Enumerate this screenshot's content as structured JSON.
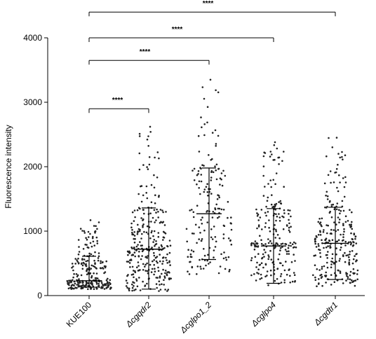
{
  "chart_data": {
    "type": "scatter",
    "subtype": "dot plot with mean and SD",
    "ylabel": "Fluorescence intensity",
    "ylim": [
      0,
      4000
    ],
    "yticks": [
      "0",
      "1000",
      "2000",
      "3000",
      "4000"
    ],
    "grid": false,
    "categories": [
      "KUE100",
      "Δcgqdr2",
      "Δcglpo1_2",
      "Δcglpo4",
      "Δcgdtr1"
    ],
    "groups": [
      {
        "name": "KUE100",
        "mean": 230,
        "sd_low": 130,
        "sd_high": 610,
        "min": 100,
        "max": 1170,
        "n": 260
      },
      {
        "name": "Δcgqdr2",
        "mean": 720,
        "sd_low": 100,
        "sd_high": 1360,
        "min": 70,
        "max": 2620,
        "n": 300
      },
      {
        "name": "Δcglpo1_2",
        "mean": 1270,
        "sd_low": 560,
        "sd_high": 1980,
        "min": 330,
        "max": 3350,
        "n": 170
      },
      {
        "name": "Δcglpo4",
        "mean": 770,
        "sd_low": 190,
        "sd_high": 1350,
        "min": 140,
        "max": 2380,
        "n": 230
      },
      {
        "name": "Δcgdtr1",
        "mean": 810,
        "sd_low": 250,
        "sd_high": 1370,
        "min": 110,
        "max": 2450,
        "n": 270
      }
    ],
    "comparisons": [
      {
        "from": 0,
        "to": 1,
        "label": "****",
        "y": 2900
      },
      {
        "from": 0,
        "to": 2,
        "label": "****",
        "y": 3650
      },
      {
        "from": 0,
        "to": 3,
        "label": "****",
        "y": 4000
      },
      {
        "from": 0,
        "to": 4,
        "label": "****",
        "y": 4400
      }
    ]
  }
}
